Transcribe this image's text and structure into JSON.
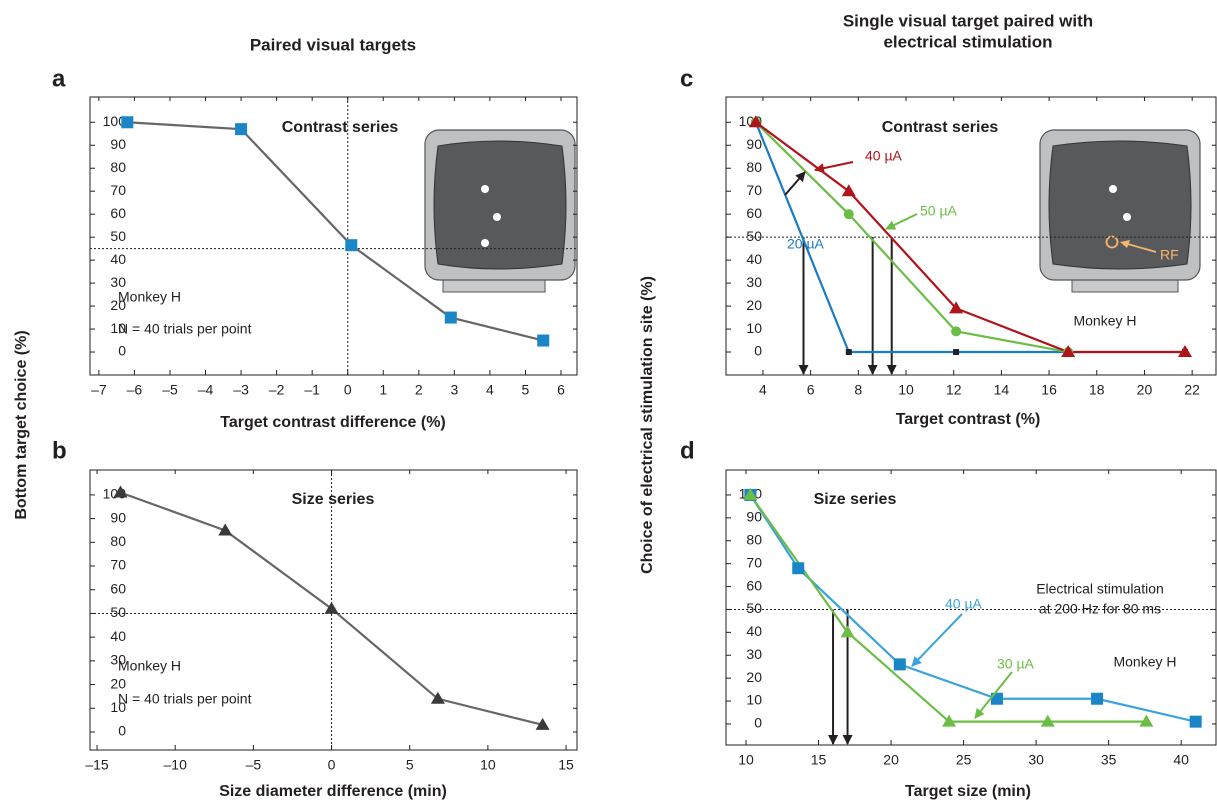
{
  "column_titles": [
    [
      "Paired visual targets"
    ],
    [
      "Single visual target paired with",
      "electrical stimulation"
    ]
  ],
  "chart_data": [
    {
      "type": "line",
      "panel": "a",
      "xlabel": "Target contrast difference (%)",
      "ylabel": "Bottom target choice (%)",
      "xlim": [
        -7.25,
        6.45
      ],
      "ylim": [
        -10,
        111
      ],
      "xticks": [
        {
          "value": -7,
          "label": "–7"
        },
        {
          "value": -6,
          "label": "–6"
        },
        {
          "value": -5,
          "label": "–5"
        },
        {
          "value": -4,
          "label": "–4"
        },
        {
          "value": -3,
          "label": "–3"
        },
        {
          "value": -2,
          "label": "–2"
        },
        {
          "value": -1,
          "label": "–1"
        },
        0,
        1,
        2,
        3,
        4,
        5,
        6
      ],
      "yticks": [
        0,
        10,
        20,
        30,
        40,
        50,
        60,
        70,
        80,
        90,
        100
      ],
      "refx": 0,
      "refy": 45,
      "annotations": [
        "Contrast series",
        "Monkey H",
        "N = 40 trials per point"
      ],
      "series": [
        {
          "x": [
            -6.2,
            -3,
            0.1,
            2.9,
            5.5
          ],
          "values": [
            100,
            97,
            46.5,
            15,
            5
          ],
          "color": "#1a86c8",
          "line_color": "#666666",
          "marker": "square"
        }
      ]
    },
    {
      "type": "line",
      "panel": "b",
      "xlabel": "Size diameter difference (min)",
      "xlim": [
        -15.45,
        15.7
      ],
      "ylim": [
        -7.6,
        110.5
      ],
      "xticks": [
        {
          "value": -15,
          "label": "–15"
        },
        {
          "value": -10,
          "label": "–10"
        },
        {
          "value": -5,
          "label": "–5"
        },
        0,
        5,
        10,
        15
      ],
      "yticks": [
        0,
        10,
        20,
        30,
        40,
        50,
        60,
        70,
        80,
        90,
        100
      ],
      "refx": 0,
      "refy": 50,
      "annotations": [
        "Size series",
        "Monkey H",
        "N = 40 trials per point"
      ],
      "series": [
        {
          "x": [
            -13.5,
            -6.8,
            0,
            6.8,
            13.5
          ],
          "values": [
            101,
            85,
            52,
            14,
            3
          ],
          "color": "#3a3a3a",
          "line_color": "#666666",
          "marker": "triangle"
        }
      ]
    },
    {
      "type": "line",
      "panel": "c",
      "xlabel": "Target contrast (%)",
      "ylabel": "Choice of electrical stimulation site (%)",
      "xlim": [
        2.45,
        23
      ],
      "ylim": [
        -10,
        111
      ],
      "xticks": [
        4,
        6,
        8,
        10,
        12,
        14,
        16,
        18,
        20,
        22
      ],
      "yticks": [
        0,
        10,
        20,
        30,
        40,
        50,
        60,
        70,
        80,
        90,
        100
      ],
      "refy": 50,
      "thresholds": [
        5.7,
        8.6,
        9.4
      ],
      "annotations": [
        "Contrast series",
        "Monkey H",
        "RF"
      ],
      "series": [
        {
          "name": "20 µA",
          "x": [
            3.7,
            7.6,
            12.1,
            16.8,
            21.7
          ],
          "values": [
            100,
            0,
            0,
            0,
            0
          ],
          "color": "#222222",
          "line_color": "#1a7cc4",
          "label_color": "#1a7cc4",
          "marker": "small"
        },
        {
          "name": "50 µA",
          "x": [
            3.7,
            7.6,
            12.1,
            16.8
          ],
          "values": [
            100,
            60,
            9,
            0
          ],
          "color": "#6cbd45",
          "line_color": "#6cbd45",
          "label_color": "#6cbd45",
          "marker": "circle"
        },
        {
          "name": "40 µA",
          "x": [
            3.7,
            7.6,
            12.1,
            16.8,
            21.7
          ],
          "values": [
            100,
            70,
            19,
            0,
            0
          ],
          "color": "#b0141b",
          "line_color": "#b0141b",
          "label_color": "#b0141b",
          "marker": "triangle"
        }
      ]
    },
    {
      "type": "line",
      "panel": "d",
      "xlabel": "Target size (min)",
      "xlim": [
        8.62,
        42.4
      ],
      "ylim": [
        -9.2,
        110.9
      ],
      "xticks": [
        10,
        15,
        20,
        25,
        30,
        35,
        40
      ],
      "yticks": [
        0,
        10,
        20,
        30,
        40,
        50,
        60,
        70,
        80,
        90,
        100
      ],
      "refy": 50,
      "thresholds": [
        16,
        17
      ],
      "annotations": [
        "Size series",
        "Electrical stimulation",
        "at 200 Hz for 80 ms",
        "Monkey H"
      ],
      "series": [
        {
          "name": "40 µA",
          "x": [
            10.3,
            13.6,
            20.6,
            27.3,
            34.2,
            41
          ],
          "values": [
            100,
            68,
            26,
            11,
            11,
            1
          ],
          "color": "#1a86c8",
          "line_color": "#3ba3dc",
          "label_color": "#3ba3dc",
          "marker": "square"
        },
        {
          "name": "30 µA",
          "x": [
            10.3,
            17,
            24,
            30.8,
            37.6
          ],
          "values": [
            100,
            40,
            1,
            1,
            1
          ],
          "color": "#6cbd45",
          "line_color": "#6cbd45",
          "label_color": "#6cbd45",
          "marker": "triangle"
        }
      ]
    }
  ]
}
